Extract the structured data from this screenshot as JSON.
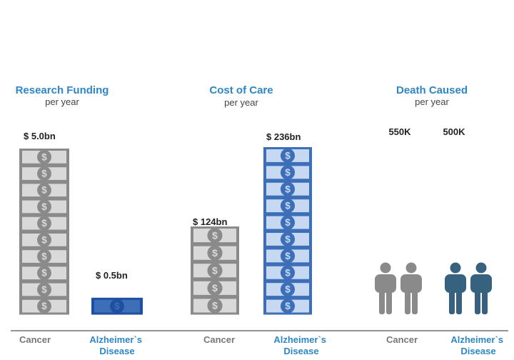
{
  "colors": {
    "title": "#2f86c6",
    "subtitle": "#444444",
    "value_text": "#222222",
    "cancer": "#8a8a8a",
    "cancer_light": "#d9d9d9",
    "alzheimers": "#3c6fb8",
    "alzheimers_light": "#c7d8f2",
    "alzheimers_dark": "#1f4fa0",
    "alzheimers_people": "#36627f",
    "cancer_label": "#777777",
    "alzheimers_label": "#2f86c6",
    "baseline": "#555555"
  },
  "icons": {
    "money": "dollar-bill-stack-icon",
    "people": "person-icon"
  },
  "chart_data": [
    {
      "type": "bar",
      "title": "Research Funding",
      "subtitle": "per year",
      "categories": [
        "Cancer",
        "Alzheimer`s Disease"
      ],
      "values": [
        5.0,
        0.5
      ],
      "value_labels": [
        "$ 5.0bn",
        "$ 0.5bn"
      ],
      "unit": "USD billions"
    },
    {
      "type": "bar",
      "title": "Cost of Care",
      "subtitle": "per year",
      "categories": [
        "Cancer",
        "Alzheimer`s Disease"
      ],
      "values": [
        124,
        236
      ],
      "value_labels": [
        "$ 124bn",
        "$ 236bn"
      ],
      "unit": "USD billions"
    },
    {
      "type": "bar",
      "title": "Death Caused",
      "subtitle": "per year",
      "categories": [
        "Cancer",
        "Alzheimer`s Disease"
      ],
      "values": [
        550000,
        500000
      ],
      "value_labels": [
        "550K",
        "500K"
      ],
      "unit": "deaths"
    }
  ],
  "category_labels": {
    "cancer": "Cancer",
    "alzheimers_line1": "Alzheimer`s",
    "alzheimers_line2": "Disease"
  }
}
